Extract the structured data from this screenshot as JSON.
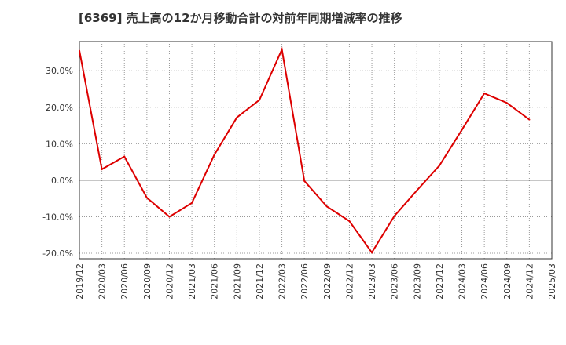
{
  "chart_data": {
    "type": "line",
    "title": "[6369]  売上高の12か月移動合計の対前年同期増減率の推移",
    "xlabel": "",
    "ylabel": "",
    "ylim": [
      -21.5,
      38
    ],
    "yticks": [
      -20,
      -10,
      0,
      10,
      20,
      30
    ],
    "ytick_labels": [
      "-20.0%",
      "-10.0%",
      "0.0%",
      "10.0%",
      "20.0%",
      "30.0%"
    ],
    "categories": [
      "2019/12",
      "2020/03",
      "2020/06",
      "2020/09",
      "2020/12",
      "2021/03",
      "2021/06",
      "2021/09",
      "2021/12",
      "2022/03",
      "2022/06",
      "2022/09",
      "2022/12",
      "2023/03",
      "2023/06",
      "2023/09",
      "2023/12",
      "2024/03",
      "2024/06",
      "2024/09",
      "2024/12",
      "2025/03"
    ],
    "series": [
      {
        "name": "増減率",
        "color": "#dd0000",
        "values": [
          35.5,
          3.0,
          6.5,
          -4.8,
          -10.0,
          -6.2,
          7.0,
          17.2,
          22.0,
          35.8,
          -0.2,
          -7.2,
          -11.2,
          -19.8,
          -9.8,
          -2.8,
          4.0,
          13.8,
          23.8,
          21.2,
          16.6,
          null
        ]
      }
    ],
    "grid": true,
    "colors": {
      "line": "#dd0000",
      "grid": "#999999",
      "axis": "#333333",
      "zero_line": "#666666"
    }
  }
}
